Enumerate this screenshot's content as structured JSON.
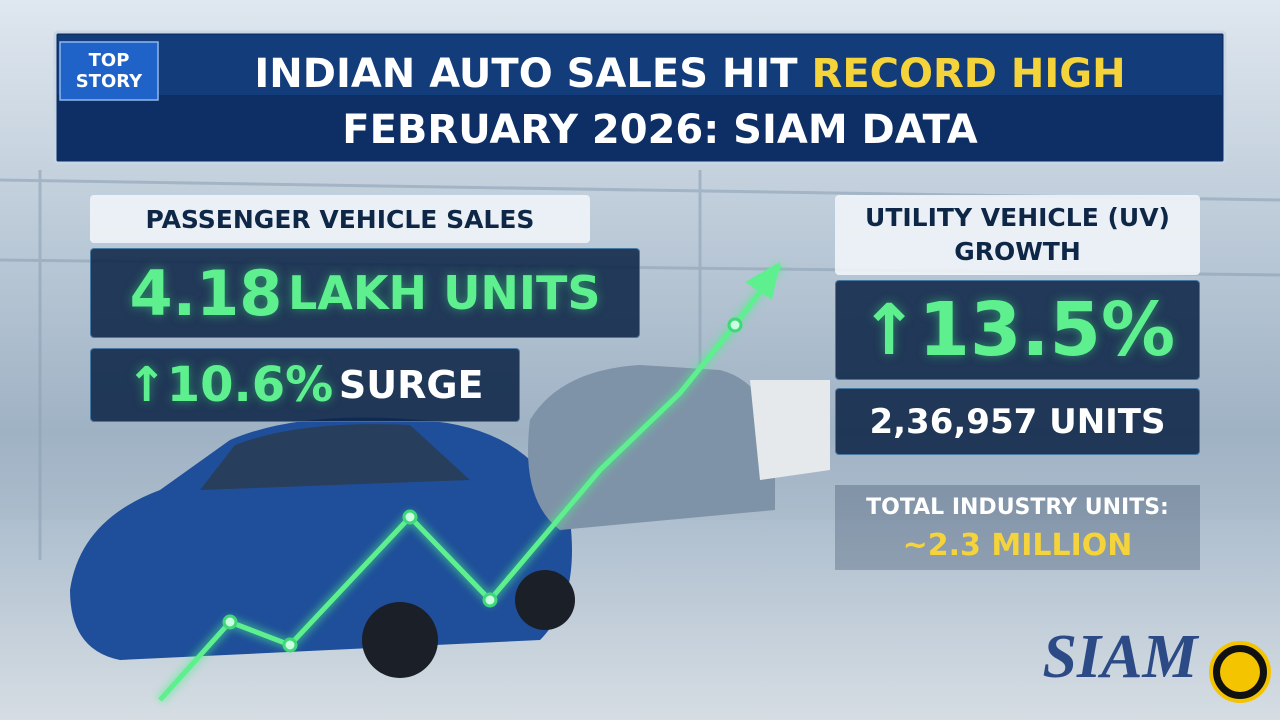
{
  "badge": {
    "line1": "TOP",
    "line2": "STORY"
  },
  "header": {
    "title_start": "INDIAN AUTO SALES HIT",
    "title_highlight": "RECORD HIGH",
    "title_line2": "FEBRUARY 2026: SIAM DATA"
  },
  "passenger": {
    "label": "PASSENGER VEHICLE SALES",
    "value": "4.18",
    "unit": "LAKH UNITS",
    "growth": "10.6%",
    "growth_word": "SURGE"
  },
  "utility": {
    "label_line1": "UTILITY VEHICLE (UV)",
    "label_line2": "GROWTH",
    "growth": "13.5%",
    "units": "2,36,957 UNITS"
  },
  "total": {
    "label": "TOTAL INDUSTRY UNITS:",
    "value": "~2.3 MILLION"
  },
  "logo": "SIAM"
}
